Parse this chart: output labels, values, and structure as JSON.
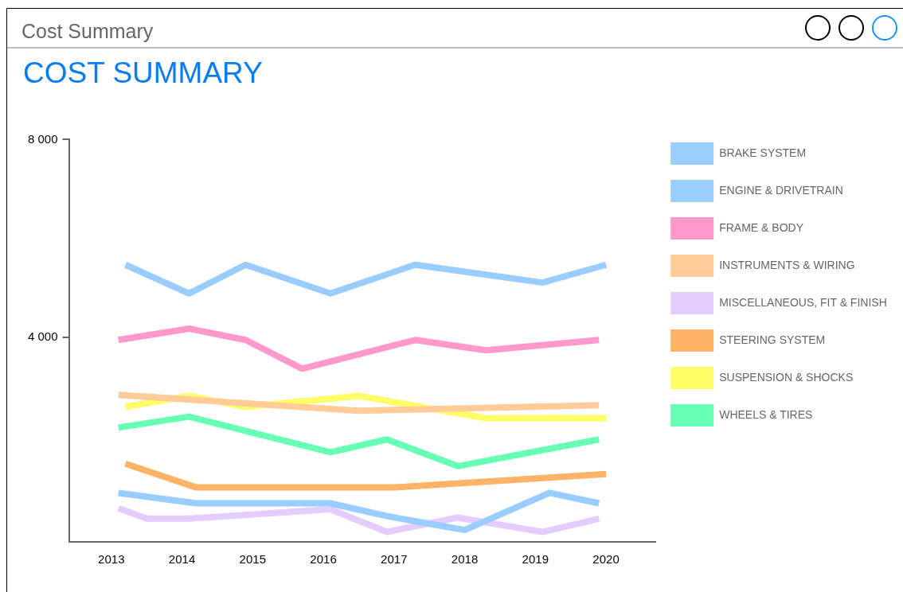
{
  "chart_data": {
    "type": "line",
    "title": "COST SUMMARY",
    "annotations": [
      "Cost Summary"
    ],
    "xlim": [
      2012.4,
      2020.7
    ],
    "xticks": [
      2013,
      2014,
      2015,
      2016,
      2017,
      2018,
      2019,
      2020
    ],
    "ylim": [
      -130,
      8000
    ],
    "yticks": [
      {
        "value": 4000,
        "label": "4 000"
      },
      {
        "value": 8000,
        "label": "8 000"
      }
    ],
    "grid": false,
    "legend": "right",
    "marker": "none",
    "line_style": "solid",
    "series": [
      {
        "name": "BRAKE SYSTEM",
        "color": "#99ccff",
        "x": [
          2013.2,
          2014.1,
          2014.9,
          2016.1,
          2017.3,
          2019.1,
          2020
        ],
        "values": [
          5470,
          4890,
          5470,
          4890,
          5470,
          5110,
          5470
        ]
      },
      {
        "name": "ENGINE & DRIVETRAIN",
        "color": "#99ccff",
        "x": [
          2013.1,
          2014.2,
          2016.1,
          2016.9,
          2018,
          2019.2,
          2019.9
        ],
        "values": [
          860,
          650,
          650,
          390,
          110,
          860,
          650
        ]
      },
      {
        "name": "FRAME & BODY",
        "color": "#ff99cc",
        "x": [
          2013.1,
          2014.1,
          2014.9,
          2015.7,
          2017.3,
          2018.3,
          2019.9
        ],
        "values": [
          3950,
          4180,
          3950,
          3370,
          3950,
          3740,
          3950
        ]
      },
      {
        "name": "INSTRUMENTS & WIRING",
        "color": "#ffcc99",
        "x": [
          2013.1,
          2016.5,
          2019.9
        ],
        "values": [
          2840,
          2520,
          2630
        ]
      },
      {
        "name": "MISCELLANEOUS, FIT & FINISH",
        "color": "#e5ccff",
        "x": [
          2013.1,
          2013.5,
          2014.1,
          2016.1,
          2016.9,
          2017.9,
          2019.1,
          2019.9
        ],
        "values": [
          550,
          340,
          340,
          530,
          70,
          360,
          70,
          340
        ]
      },
      {
        "name": "STEERING SYSTEM",
        "color": "#ffb366",
        "x": [
          2013.2,
          2014.2,
          2017,
          2020
        ],
        "values": [
          1450,
          970,
          970,
          1240
        ]
      },
      {
        "name": "SUSPENSION & SHOCKS",
        "color": "#ffff66",
        "x": [
          2013.2,
          2014.1,
          2014.9,
          2016.5,
          2018.3,
          2020
        ],
        "values": [
          2600,
          2820,
          2600,
          2820,
          2370,
          2370
        ]
      },
      {
        "name": "WHEELS & TIRES",
        "color": "#66ffb3",
        "x": [
          2013.1,
          2014.1,
          2016.1,
          2016.9,
          2017.9,
          2019.9
        ],
        "values": [
          2180,
          2400,
          1680,
          1940,
          1400,
          1940
        ]
      }
    ]
  }
}
